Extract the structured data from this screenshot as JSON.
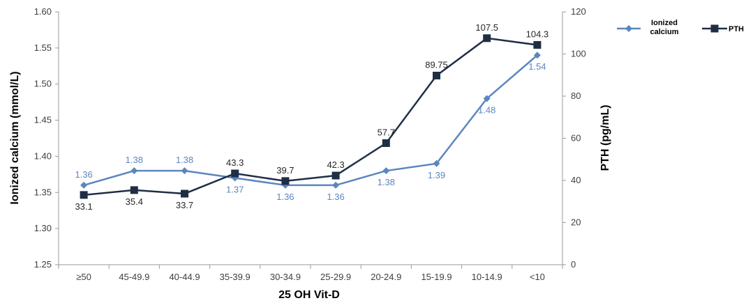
{
  "chart_data": {
    "type": "line",
    "xlabel": "25 OH Vit-D",
    "ylabel_left": "Ionized calcium (mmol/L)",
    "ylabel_right": "PTH (pg/mL)",
    "categories": [
      "≥50",
      "45-49.9",
      "40-44.9",
      "35-39.9",
      "30-34.9",
      "25-29.9",
      "20-24.9",
      "15-19.9",
      "10-14.9",
      "<10"
    ],
    "ylim_left": [
      1.25,
      1.6
    ],
    "yticks_left": [
      "1.25",
      "1.30",
      "1.35",
      "1.40",
      "1.45",
      "1.50",
      "1.55",
      "1.60"
    ],
    "ylim_right": [
      0,
      120
    ],
    "yticks_right": [
      "0",
      "20",
      "40",
      "60",
      "80",
      "100",
      "120"
    ],
    "legend_position": "top-right",
    "grid": false,
    "series": [
      {
        "name": "Ionized calcium",
        "legend_lines": [
          "Ionized",
          "calcium"
        ],
        "axis": "left",
        "color": "#5B86BE",
        "marker": "diamond",
        "values": [
          1.36,
          1.38,
          1.38,
          1.37,
          1.36,
          1.36,
          1.38,
          1.39,
          1.48,
          1.54
        ],
        "labels": [
          "1.36",
          "1.38",
          "1.38",
          "1.37",
          "1.36",
          "1.36",
          "1.38",
          "1.39",
          "1.48",
          "1.54"
        ],
        "label_pos": [
          "above",
          "above",
          "above",
          "below",
          "below",
          "below",
          "below",
          "below",
          "below",
          "below"
        ]
      },
      {
        "name": "PTH",
        "legend_lines": [
          "PTH"
        ],
        "axis": "right",
        "color": "#1F2E45",
        "marker": "square",
        "values": [
          33.1,
          35.4,
          33.7,
          43.3,
          39.7,
          42.3,
          57.7,
          89.75,
          107.5,
          104.3
        ],
        "labels": [
          "33.1",
          "35.4",
          "33.7",
          "43.3",
          "39.7",
          "42.3",
          "57.7",
          "89.75",
          "107.5",
          "104.3"
        ],
        "label_pos": [
          "below",
          "below",
          "below",
          "above",
          "above",
          "above",
          "above",
          "above",
          "above",
          "above"
        ]
      }
    ]
  }
}
